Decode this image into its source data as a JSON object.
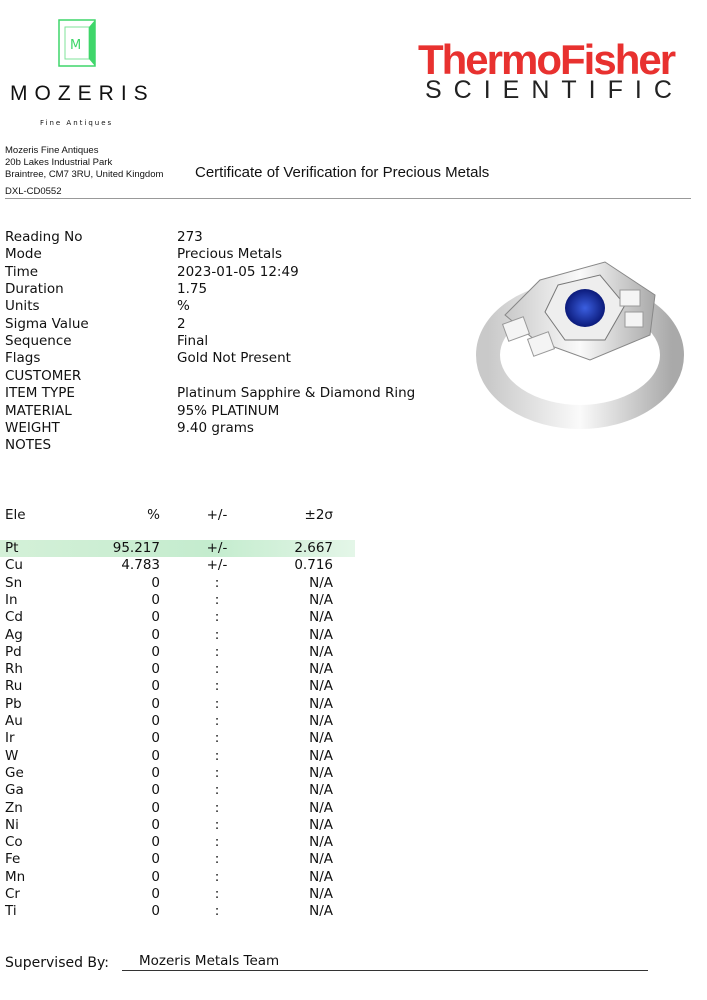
{
  "header": {
    "logo_left": {
      "name": "MOZERIS",
      "tagline": "Fine Antiques",
      "accent": "#3fd66a"
    },
    "logo_right": {
      "line1": "ThermoFisher",
      "line2": "SCIENTIFIC",
      "color": "#e8312f"
    },
    "address": [
      "Mozeris Fine Antiques",
      "20b Lakes Industrial Park",
      "Braintree, CM7 3RU, United Kingdom"
    ],
    "code": "DXL-CD0552",
    "title": "Certificate of Verification for Precious Metals"
  },
  "info": [
    {
      "label": "Reading No",
      "value": "273"
    },
    {
      "label": "Mode",
      "value": "Precious Metals"
    },
    {
      "label": "Time",
      "value": "2023-01-05 12:49"
    },
    {
      "label": "Duration",
      "value": "1.75"
    },
    {
      "label": "Units",
      "value": "%"
    },
    {
      "label": "Sigma Value",
      "value": "2"
    },
    {
      "label": "Sequence",
      "value": "Final"
    },
    {
      "label": "Flags",
      "value": "Gold Not Present"
    },
    {
      "label": "CUSTOMER",
      "value": ""
    },
    {
      "label": "ITEM TYPE",
      "value": "Platinum Sapphire & Diamond Ring"
    },
    {
      "label": "MATERIAL",
      "value": "95% PLATINUM"
    },
    {
      "label": "WEIGHT",
      "value": "9.40 grams"
    },
    {
      "label": "NOTES",
      "value": ""
    }
  ],
  "table": {
    "headers": [
      "Ele",
      "%",
      "+/-",
      "±2σ"
    ],
    "highlight_color": "#c8eed0",
    "rows": [
      [
        "Pt",
        "95.217",
        "+/-",
        "2.667"
      ],
      [
        "Cu",
        "4.783",
        "+/-",
        "0.716"
      ],
      [
        "Sn",
        "0",
        ":",
        "N/A"
      ],
      [
        "In",
        "0",
        ":",
        "N/A"
      ],
      [
        "Cd",
        "0",
        ":",
        "N/A"
      ],
      [
        "Ag",
        "0",
        ":",
        "N/A"
      ],
      [
        "Pd",
        "0",
        ":",
        "N/A"
      ],
      [
        "Rh",
        "0",
        ":",
        "N/A"
      ],
      [
        "Ru",
        "0",
        ":",
        "N/A"
      ],
      [
        "Pb",
        "0",
        ":",
        "N/A"
      ],
      [
        "Au",
        "0",
        ":",
        "N/A"
      ],
      [
        "Ir",
        "0",
        ":",
        "N/A"
      ],
      [
        "W",
        "0",
        ":",
        "N/A"
      ],
      [
        "Ge",
        "0",
        ":",
        "N/A"
      ],
      [
        "Ga",
        "0",
        ":",
        "N/A"
      ],
      [
        "Zn",
        "0",
        ":",
        "N/A"
      ],
      [
        "Ni",
        "0",
        ":",
        "N/A"
      ],
      [
        "Co",
        "0",
        ":",
        "N/A"
      ],
      [
        "Fe",
        "0",
        ":",
        "N/A"
      ],
      [
        "Mn",
        "0",
        ":",
        "N/A"
      ],
      [
        "Cr",
        "0",
        ":",
        "N/A"
      ],
      [
        "Ti",
        "0",
        ":",
        "N/A"
      ]
    ]
  },
  "footer": {
    "label": "Supervised By:",
    "value": "Mozeris Metals Team"
  }
}
